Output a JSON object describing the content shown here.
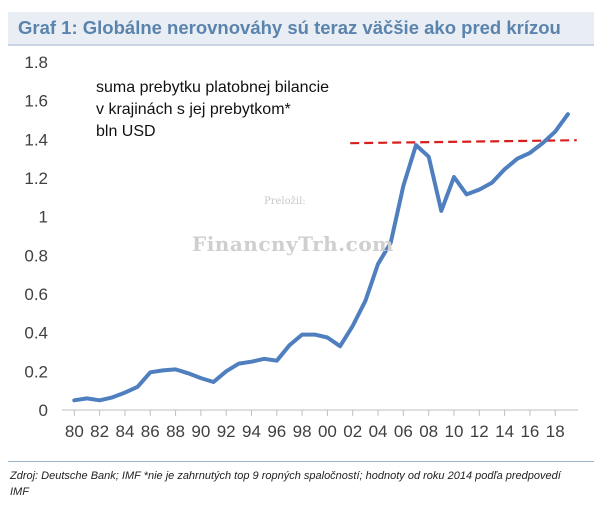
{
  "header": {
    "title": "Graf 1: Globálne nerovnováhy sú teraz väčšie ako pred krízou"
  },
  "annotation": {
    "lines": [
      "suma prebytku platobnej bilancie",
      "v krajinách s jej prebytkom*",
      "bln USD"
    ]
  },
  "watermark": {
    "small": "Preložil:",
    "big": "FinancnyTrh.com"
  },
  "footer": {
    "source": "Zdroj: Deutsche Bank; IMF *nie je zahrnutých top 9 ropných spaločností; hodnoty od roku 2014 podľa predpovedí IMF"
  },
  "colors": {
    "line": "#4f7fbf",
    "reference": "#d81e1e",
    "title": "#5a84ad"
  },
  "chart_data": {
    "type": "line",
    "title": "",
    "xlabel": "",
    "ylabel": "",
    "x_ticks": [
      "80",
      "82",
      "84",
      "86",
      "88",
      "90",
      "92",
      "94",
      "96",
      "98",
      "00",
      "02",
      "04",
      "06",
      "08",
      "10",
      "12",
      "14",
      "16",
      "18"
    ],
    "y_ticks": [
      "0",
      "0.2",
      "0.4",
      "0.6",
      "0.8",
      "1",
      "1.2",
      "1.4",
      "1.6",
      "1.8"
    ],
    "ylim": [
      0,
      1.8
    ],
    "xlim": [
      1979.5,
      2019.8
    ],
    "grid": false,
    "series": [
      {
        "x": [
          1980,
          1981,
          1982,
          1983,
          1984,
          1985,
          1986,
          1987,
          1988,
          1989,
          1990,
          1991,
          1992,
          1993,
          1994,
          1995,
          1996,
          1997,
          1998,
          1999,
          2000,
          2001,
          2002,
          2003,
          2004,
          2005,
          2006,
          2007,
          2008,
          2009,
          2010,
          2011,
          2012,
          2013,
          2014,
          2015,
          2016,
          2017,
          2018,
          2019
        ],
        "values": [
          0.05,
          0.06,
          0.05,
          0.065,
          0.09,
          0.12,
          0.195,
          0.205,
          0.21,
          0.19,
          0.165,
          0.145,
          0.2,
          0.24,
          0.25,
          0.265,
          0.255,
          0.335,
          0.39,
          0.39,
          0.375,
          0.33,
          0.435,
          0.565,
          0.755,
          0.865,
          1.16,
          1.37,
          1.31,
          1.03,
          1.205,
          1.115,
          1.14,
          1.175,
          1.245,
          1.3,
          1.33,
          1.38,
          1.44,
          1.53
        ]
      }
    ],
    "reference_line": {
      "y": 1.38,
      "x_start": 2001.8,
      "x_end": 2019.7,
      "style": "dashed"
    }
  }
}
